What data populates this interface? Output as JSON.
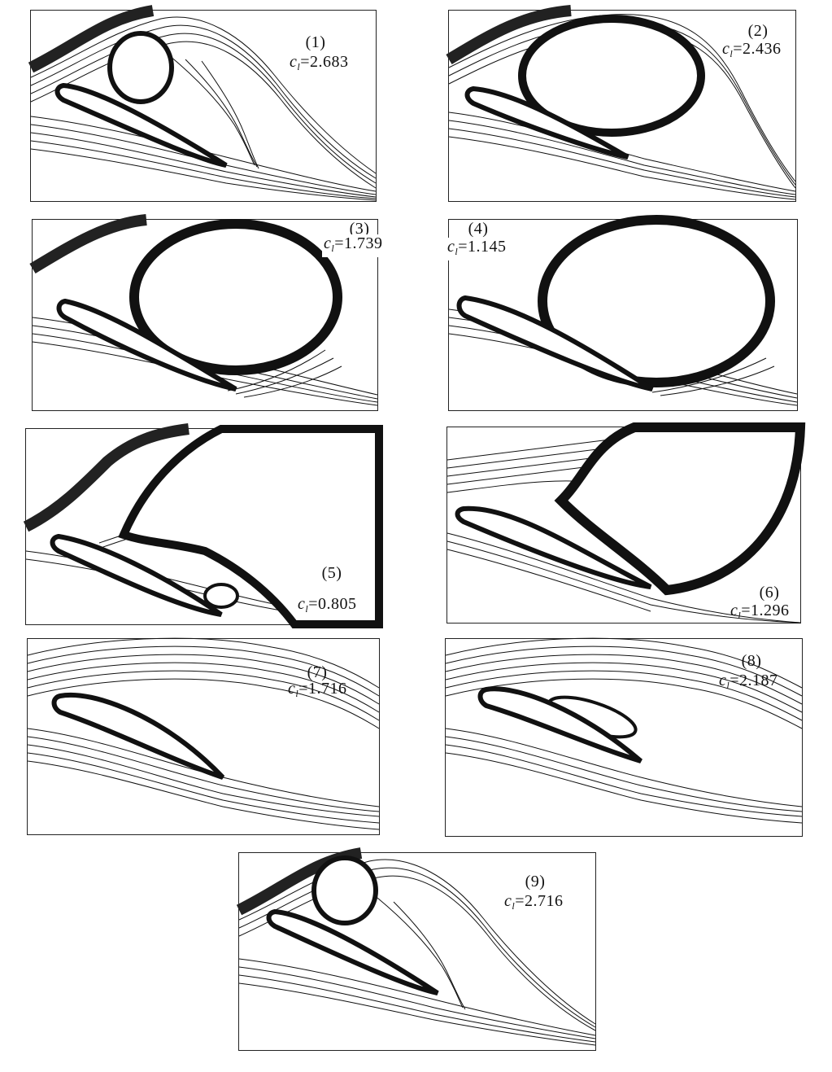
{
  "panels": [
    {
      "number": "(1)",
      "ci_value": "2.683"
    },
    {
      "number": "(2)",
      "ci_value": "2.436"
    },
    {
      "number": "(3)",
      "ci_value": "1.739"
    },
    {
      "number": "(4)",
      "ci_value": "1.145"
    },
    {
      "number": "(5)",
      "ci_value": "0.805"
    },
    {
      "number": "(6)",
      "ci_value": "1.296"
    },
    {
      "number": "(7)",
      "ci_value": "1.716"
    },
    {
      "number": "(8)",
      "ci_value": "2.187"
    },
    {
      "number": "(9)",
      "ci_value": "2.716"
    }
  ],
  "symbol": {
    "base": "c",
    "subscript": "l",
    "eq": "="
  }
}
